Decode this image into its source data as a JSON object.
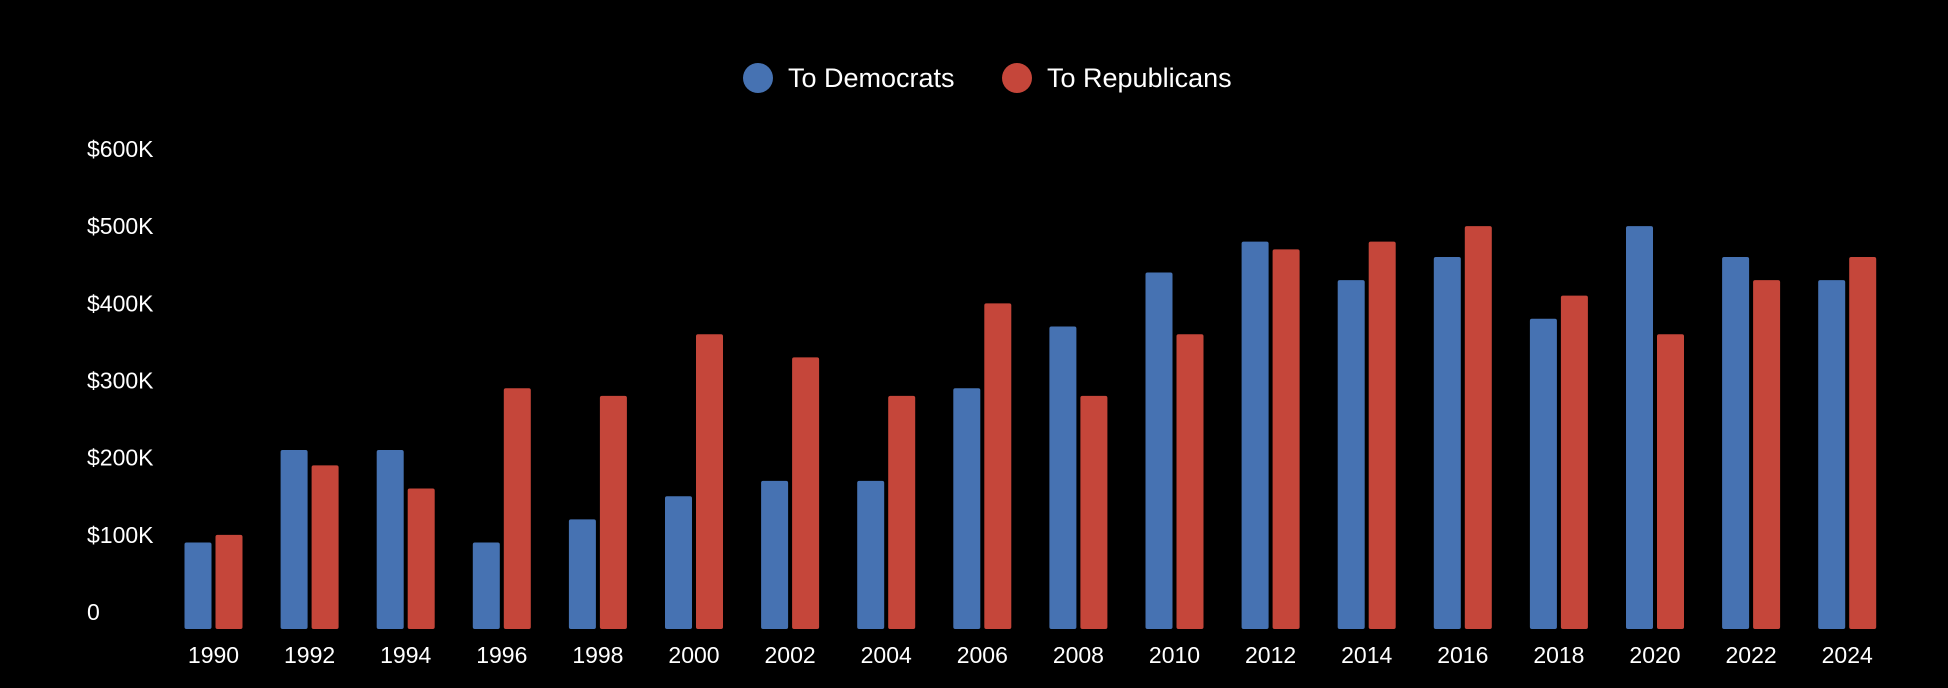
{
  "chart_data": {
    "type": "bar",
    "title": "",
    "xlabel": "",
    "ylabel": "",
    "ylim": [
      0,
      600000
    ],
    "y_ticks": [
      0,
      100000,
      200000,
      300000,
      400000,
      500000,
      600000
    ],
    "y_tick_labels": [
      "0",
      "$100K",
      "$200K",
      "$300K",
      "$400K",
      "$500K",
      "$600K"
    ],
    "grid": false,
    "legend_position": "top-center",
    "categories": [
      "1990",
      "1992",
      "1994",
      "1996",
      "1998",
      "2000",
      "2002",
      "2004",
      "2006",
      "2008",
      "2010",
      "2012",
      "2014",
      "2016",
      "2018",
      "2020",
      "2022",
      "2024"
    ],
    "series": [
      {
        "name": "To Democrats",
        "color": "#4672b2",
        "values": [
          90000,
          210000,
          210000,
          90000,
          120000,
          150000,
          170000,
          170000,
          290000,
          370000,
          440000,
          480000,
          430000,
          460000,
          380000,
          500000,
          460000,
          430000
        ]
      },
      {
        "name": "To Republicans",
        "color": "#c5463a",
        "values": [
          100000,
          190000,
          160000,
          290000,
          280000,
          360000,
          330000,
          280000,
          400000,
          280000,
          360000,
          470000,
          480000,
          500000,
          410000,
          360000,
          430000,
          460000
        ]
      }
    ]
  },
  "colors": {
    "background": "#000000",
    "text": "#ffffff"
  }
}
